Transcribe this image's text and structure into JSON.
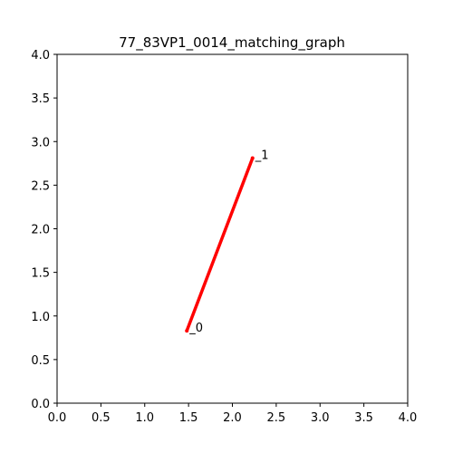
{
  "chart_data": {
    "type": "line",
    "title": "77_83VP1_0014_matching_graph",
    "xlabel": "",
    "ylabel": "",
    "xlim": [
      0.0,
      4.0
    ],
    "ylim": [
      0.0,
      4.0
    ],
    "grid": false,
    "x_ticks": [
      "0.0",
      "0.5",
      "1.0",
      "1.5",
      "2.0",
      "2.5",
      "3.0",
      "3.5",
      "4.0"
    ],
    "y_ticks": [
      "0.0",
      "0.5",
      "1.0",
      "1.5",
      "2.0",
      "2.5",
      "3.0",
      "3.5",
      "4.0"
    ],
    "nodes": [
      {
        "id": "0",
        "label": "_0",
        "x": 1.48,
        "y": 0.83
      },
      {
        "id": "1",
        "label": "_1",
        "x": 2.23,
        "y": 2.81
      }
    ],
    "edges": [
      {
        "source": "0",
        "target": "1",
        "color": "#ff0000"
      }
    ]
  }
}
